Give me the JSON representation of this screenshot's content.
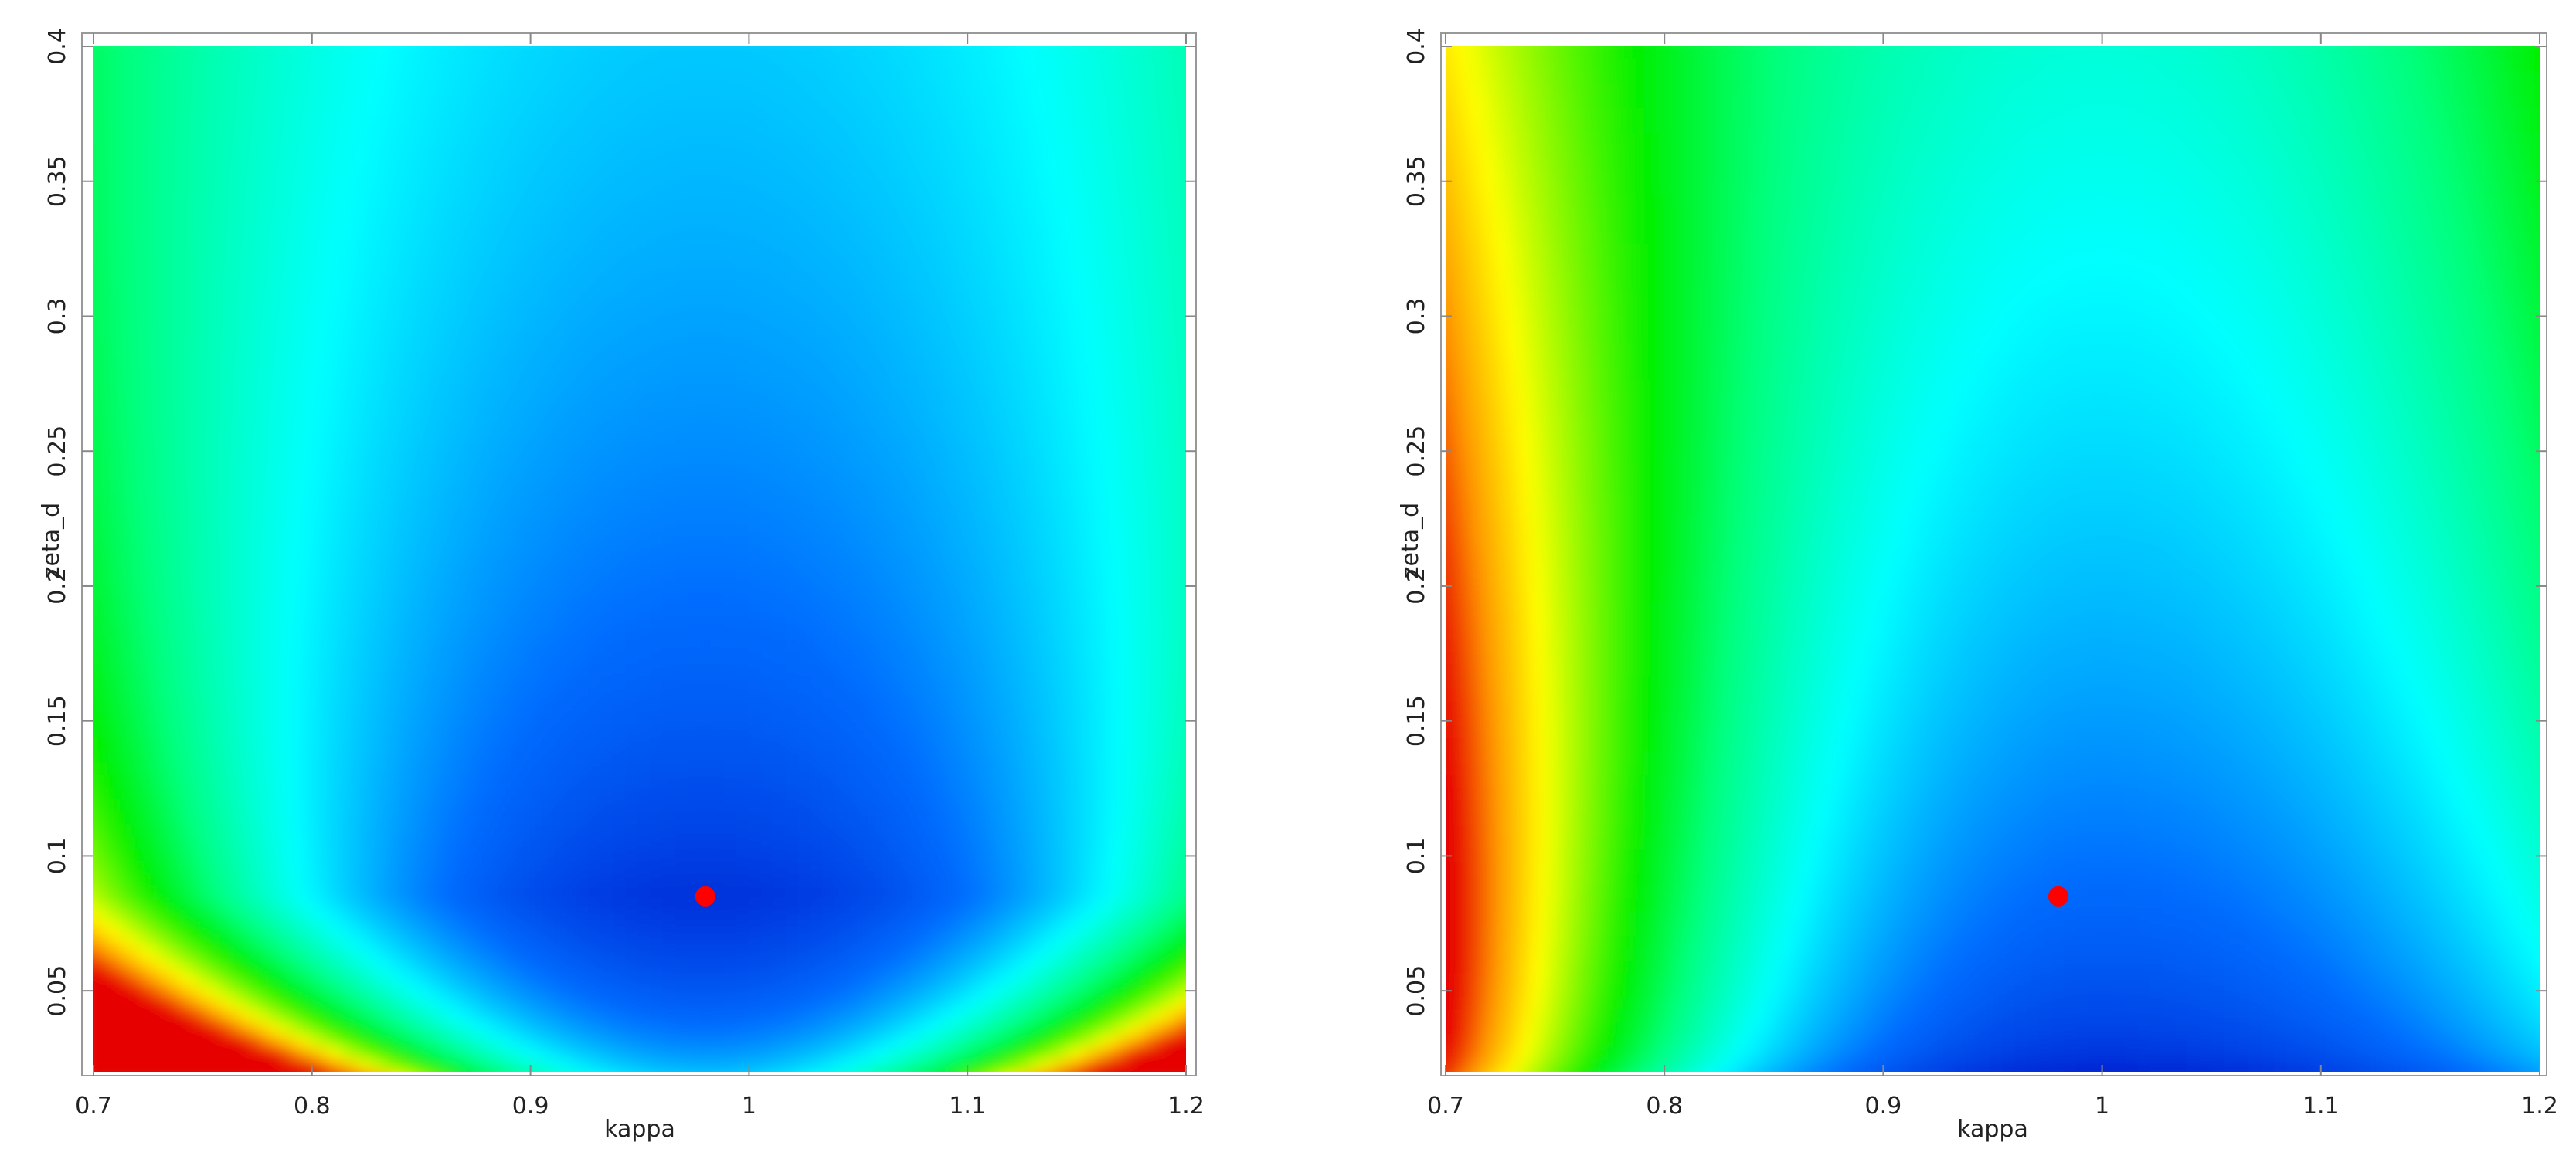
{
  "chart_data": [
    {
      "type": "contour",
      "x_label": "kappa",
      "y_label": "zeta_d",
      "xlim": [
        0.7,
        1.2
      ],
      "ylim": [
        0.02,
        0.4
      ],
      "xticks": [
        0.7,
        0.8,
        0.9,
        1,
        1.1,
        1.2
      ],
      "yticks": [
        0.05,
        0.1,
        0.15,
        0.2,
        0.25,
        0.3,
        0.35,
        0.4
      ],
      "points": {
        "x": [
          0.98
        ],
        "y": [
          0.085
        ],
        "color": "#ff0000"
      }
    },
    {
      "type": "contour",
      "x_label": "kappa",
      "y_label": "zeta_d",
      "xlim": [
        0.7,
        1.2
      ],
      "ylim": [
        0.02,
        0.4
      ],
      "xticks": [
        0.7,
        0.8,
        0.9,
        1,
        1.1,
        1.2
      ],
      "yticks": [
        0.05,
        0.1,
        0.15,
        0.2,
        0.25,
        0.3,
        0.35,
        0.4
      ],
      "points": {
        "x": [
          0.98
        ],
        "y": [
          0.085
        ],
        "color": "#ff0000"
      }
    }
  ]
}
